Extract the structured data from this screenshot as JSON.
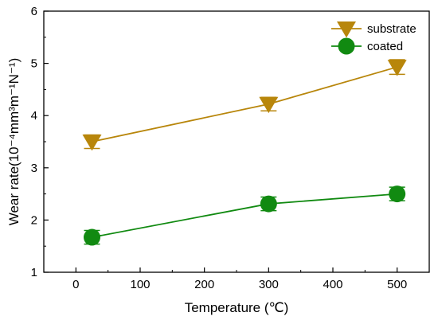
{
  "chart_data": {
    "type": "line",
    "xlabel": "Temperature (℃)",
    "ylabel": "Wear rate(10⁻⁴mm³m⁻¹N⁻¹)",
    "xlim": [
      -50,
      550
    ],
    "ylim": [
      1,
      6
    ],
    "xticks": [
      0,
      100,
      200,
      300,
      400,
      500
    ],
    "yticks": [
      1,
      2,
      3,
      4,
      5,
      6
    ],
    "grid": false,
    "legend_position": "top-right",
    "series": [
      {
        "name": "substrate",
        "marker": "triangle-down",
        "color": "#B8860B",
        "x": [
          25,
          300,
          500
        ],
        "y": [
          3.5,
          4.22,
          4.93
        ],
        "yerr": [
          0.13,
          0.13,
          0.14
        ]
      },
      {
        "name": "coated",
        "marker": "circle",
        "color": "#118A11",
        "x": [
          25,
          300,
          500
        ],
        "y": [
          1.67,
          2.31,
          2.5
        ],
        "yerr": [
          0.13,
          0.13,
          0.13
        ]
      }
    ]
  }
}
